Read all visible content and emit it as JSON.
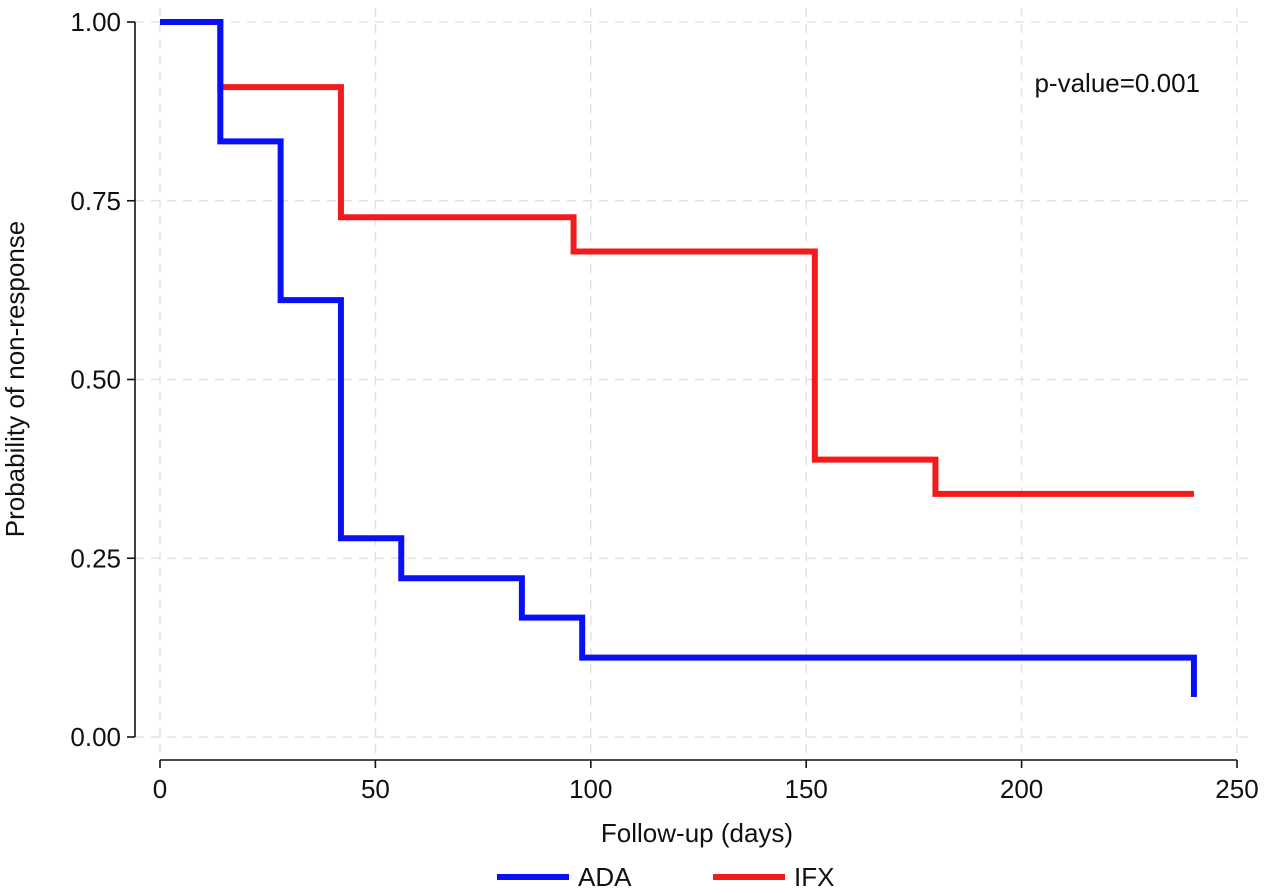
{
  "chart_data": {
    "type": "line",
    "step": true,
    "title": "",
    "xlabel": "Follow-up (days)",
    "ylabel": "Probability of non-response",
    "xlim": [
      0,
      250
    ],
    "ylim": [
      0,
      1
    ],
    "x_ticks": [
      0,
      50,
      100,
      150,
      200,
      250
    ],
    "x_tick_labels": [
      "0",
      "50",
      "100",
      "150",
      "200",
      "250"
    ],
    "y_ticks": [
      0,
      0.25,
      0.5,
      0.75,
      1
    ],
    "y_tick_labels": [
      "0.00",
      "0.25",
      "0.50",
      "0.75",
      "1.00"
    ],
    "grid": true,
    "legend_position": "bottom",
    "annotation": "p-value=0.001",
    "series": [
      {
        "name": "ADA",
        "color": "#0a10f5",
        "x": [
          0,
          14,
          28,
          42,
          56,
          84,
          98,
          240
        ],
        "y": [
          1.0,
          0.833,
          0.611,
          0.278,
          0.222,
          0.167,
          0.111,
          0.056
        ]
      },
      {
        "name": "IFX",
        "color": "#f21a1a",
        "x": [
          0,
          14,
          42,
          96,
          152,
          180,
          240
        ],
        "y": [
          1.0,
          0.909,
          0.727,
          0.679,
          0.388,
          0.34,
          0.34
        ]
      }
    ]
  }
}
